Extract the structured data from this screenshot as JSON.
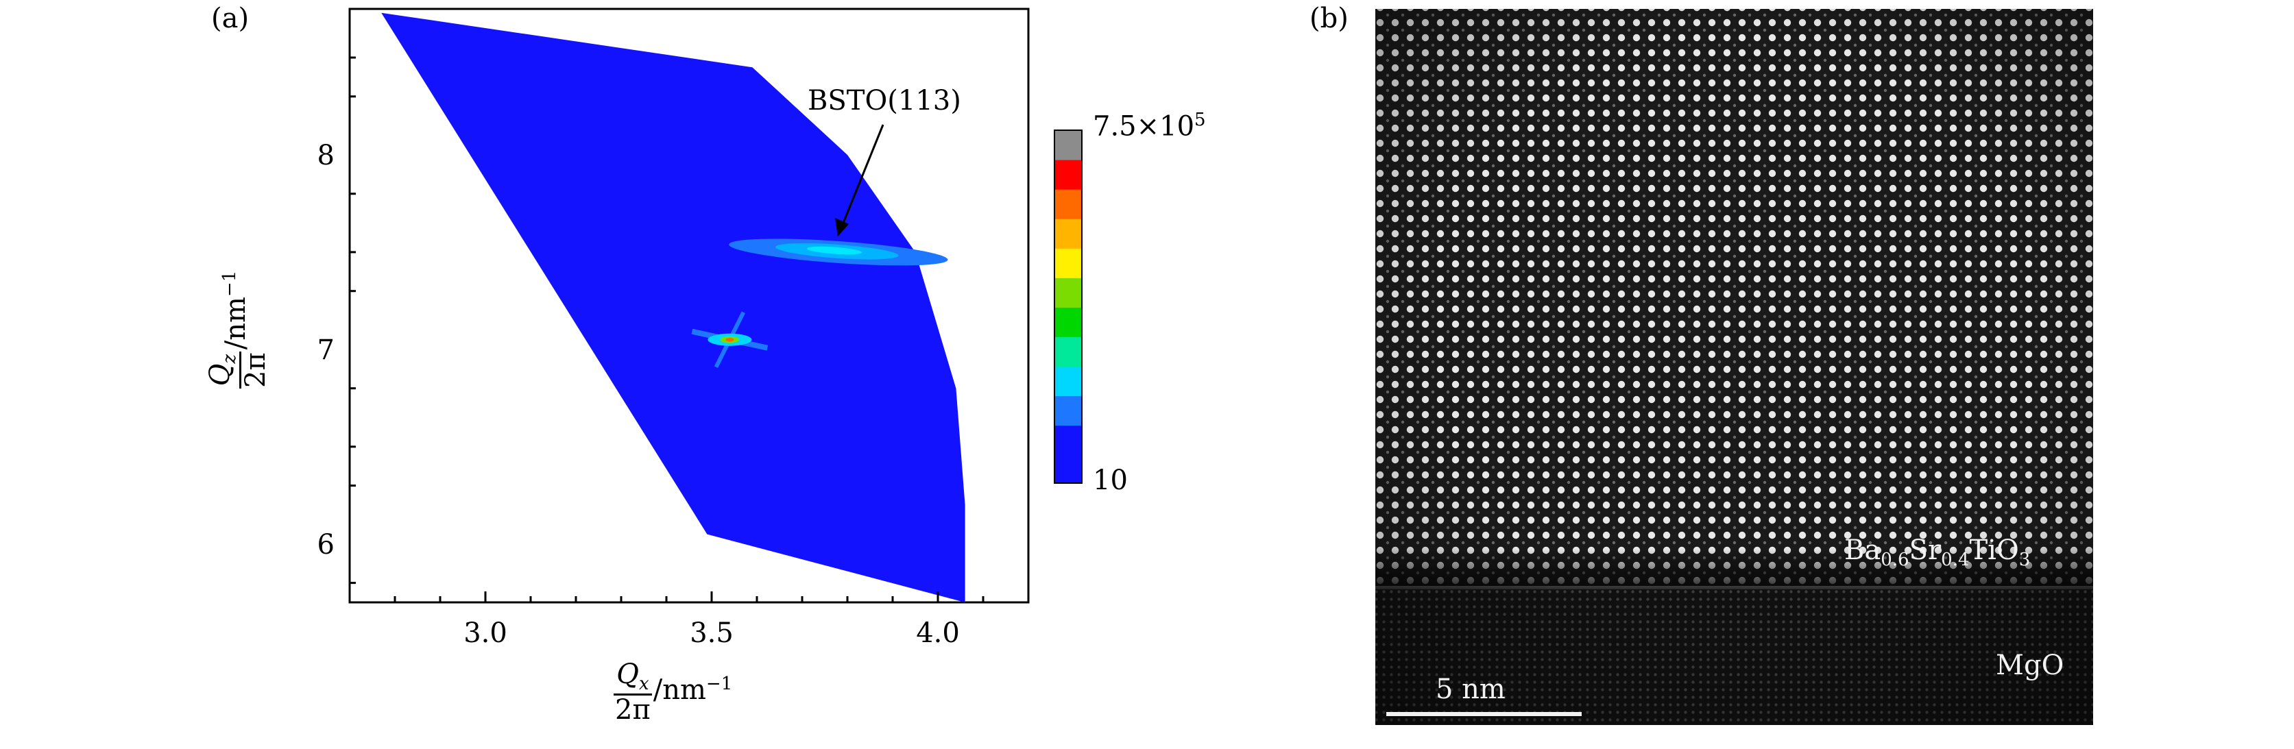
{
  "panel_a": {
    "label": "(a)",
    "annotation": "BSTO(113)",
    "x_title": {
      "num_sym": "Q",
      "num_sub": "x",
      "den": "2π",
      "unit": "/nm",
      "unit_sup": "−1"
    },
    "y_title": {
      "num_sym": "Q",
      "num_sub": "z",
      "den": "2π",
      "unit": "/nm",
      "unit_sup": "−1"
    },
    "colorbar": {
      "max_mant": "7.5",
      "max_times": "×10",
      "max_exp": "5",
      "min": "10",
      "colors": [
        "#1212ff",
        "#1e78ff",
        "#00d7ff",
        "#00e89a",
        "#00d700",
        "#7adc00",
        "#fff000",
        "#ffb400",
        "#ff6a00",
        "#ff0000",
        "#8c8c8c"
      ]
    }
  },
  "panel_b": {
    "label": "(b)",
    "film_label": {
      "ba": "Ba",
      "ba_sub": "0.6",
      "sr": "Sr",
      "sr_sub": "0.4",
      "tio": "TiO",
      "tio_sub": "3"
    },
    "substrate_label": "MgO",
    "scale_bar": "5 nm"
  },
  "chart_data": [
    {
      "type": "heatmap",
      "title": "",
      "xlabel": "Qx/2π /nm^-1",
      "ylabel": "Qz/2π /nm^-1",
      "xlim": [
        2.7,
        4.2
      ],
      "ylim": [
        5.7,
        8.75
      ],
      "xticks": [
        3.0,
        3.5,
        4.0
      ],
      "xtick_labels": [
        "3.0",
        "3.5",
        "4.0"
      ],
      "yticks": [
        6,
        7,
        8
      ],
      "ytick_labels": [
        "6",
        "7",
        "8"
      ],
      "scan_region": [
        [
          2.77,
          8.73
        ],
        [
          3.59,
          8.45
        ],
        [
          3.8,
          8.0
        ],
        [
          3.95,
          7.5
        ],
        [
          4.04,
          6.8
        ],
        [
          4.06,
          6.2
        ],
        [
          4.06,
          5.7
        ],
        [
          3.49,
          6.05
        ]
      ],
      "peaks": [
        {
          "name": "substrate",
          "qx": 3.54,
          "qz": 7.05
        },
        {
          "name": "BSTO(113)",
          "qx": 3.78,
          "qz": 7.5
        }
      ],
      "colorbar_range": [
        10,
        750000
      ]
    }
  ]
}
